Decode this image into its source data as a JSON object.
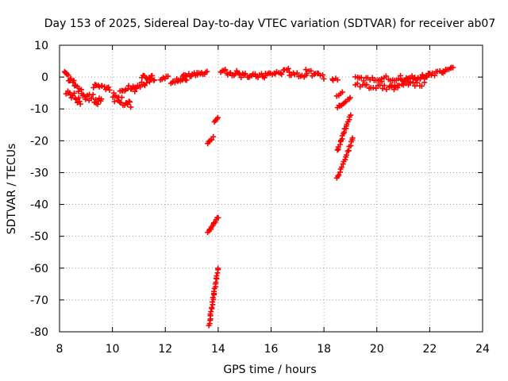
{
  "chart_data": {
    "type": "scatter",
    "title": "Day 153 of 2025, Sidereal Day-to-day VTEC variation (SDTVAR) for receiver ab07",
    "xlabel": "GPS time / hours",
    "ylabel": "SDTVAR / TECUs",
    "xlim": [
      8,
      24
    ],
    "ylim": [
      -80,
      10
    ],
    "xticks": [
      "8",
      "10",
      "12",
      "14",
      "16",
      "18",
      "20",
      "22",
      "24"
    ],
    "yticks": [
      "10",
      "0",
      "-10",
      "-20",
      "-30",
      "-40",
      "-50",
      "-60",
      "-70",
      "-80"
    ],
    "grid": true,
    "marker": "plus",
    "color": "#ff0000",
    "segments": [
      {
        "x0": 8.2,
        "x1": 8.4,
        "y0": 1.5,
        "y1": -1.0,
        "spread": 1.8,
        "n": 8
      },
      {
        "x0": 8.25,
        "x1": 8.8,
        "y0": -4.5,
        "y1": -7.5,
        "spread": 2.5,
        "n": 14
      },
      {
        "x0": 8.4,
        "x1": 8.9,
        "y0": -1.0,
        "y1": -5.0,
        "spread": 2.0,
        "n": 12
      },
      {
        "x0": 8.9,
        "x1": 9.6,
        "y0": -5.5,
        "y1": -8.0,
        "spread": 3.0,
        "n": 18
      },
      {
        "x0": 9.3,
        "x1": 9.9,
        "y0": -3.0,
        "y1": -3.5,
        "spread": 1.5,
        "n": 12
      },
      {
        "x0": 10.0,
        "x1": 10.7,
        "y0": -6.0,
        "y1": -9.0,
        "spread": 3.0,
        "n": 18
      },
      {
        "x0": 10.3,
        "x1": 10.9,
        "y0": -4.0,
        "y1": -3.0,
        "spread": 2.0,
        "n": 12
      },
      {
        "x0": 10.8,
        "x1": 11.6,
        "y0": -4.0,
        "y1": 0.0,
        "spread": 2.0,
        "n": 16
      },
      {
        "x0": 11.1,
        "x1": 11.5,
        "y0": 0.0,
        "y1": 0.0,
        "spread": 1.2,
        "n": 8
      },
      {
        "x0": 11.8,
        "x1": 12.1,
        "y0": -0.5,
        "y1": 0.0,
        "spread": 1.0,
        "n": 6
      },
      {
        "x0": 12.2,
        "x1": 12.8,
        "y0": -1.5,
        "y1": -0.5,
        "spread": 1.2,
        "n": 12
      },
      {
        "x0": 12.6,
        "x1": 13.2,
        "y0": 0.0,
        "y1": 1.0,
        "spread": 1.5,
        "n": 12
      },
      {
        "x0": 13.2,
        "x1": 13.6,
        "y0": 1.0,
        "y1": 1.5,
        "spread": 1.0,
        "n": 8
      },
      {
        "x0": 13.6,
        "x1": 13.8,
        "y0": -21.0,
        "y1": -19.0,
        "spread": 0.6,
        "n": 6
      },
      {
        "x0": 13.85,
        "x1": 14.0,
        "y0": -14.0,
        "y1": -12.5,
        "spread": 0.5,
        "n": 4
      },
      {
        "x0": 13.6,
        "x1": 14.0,
        "y0": -49.0,
        "y1": -44.0,
        "spread": 0.6,
        "n": 12
      },
      {
        "x0": 13.65,
        "x1": 14.0,
        "y0": -78.0,
        "y1": -60.0,
        "spread": 0.6,
        "n": 26
      },
      {
        "x0": 14.1,
        "x1": 14.8,
        "y0": 2.0,
        "y1": 1.0,
        "spread": 2.0,
        "n": 14
      },
      {
        "x0": 14.8,
        "x1": 15.8,
        "y0": 0.5,
        "y1": 0.5,
        "spread": 1.5,
        "n": 18
      },
      {
        "x0": 15.8,
        "x1": 16.7,
        "y0": 1.0,
        "y1": 2.0,
        "spread": 1.6,
        "n": 16
      },
      {
        "x0": 16.7,
        "x1": 17.3,
        "y0": 1.0,
        "y1": 0.5,
        "spread": 1.2,
        "n": 10
      },
      {
        "x0": 17.3,
        "x1": 18.0,
        "y0": 1.5,
        "y1": 0.0,
        "spread": 1.8,
        "n": 12
      },
      {
        "x0": 18.3,
        "x1": 18.5,
        "y0": -1.0,
        "y1": -0.5,
        "spread": 0.8,
        "n": 4
      },
      {
        "x0": 18.5,
        "x1": 18.7,
        "y0": -6.0,
        "y1": -4.5,
        "spread": 0.6,
        "n": 4
      },
      {
        "x0": 18.5,
        "x1": 19.0,
        "y0": -9.5,
        "y1": -6.5,
        "spread": 0.8,
        "n": 10
      },
      {
        "x0": 18.5,
        "x1": 19.0,
        "y0": -23.0,
        "y1": -12.0,
        "spread": 0.7,
        "n": 18
      },
      {
        "x0": 18.5,
        "x1": 19.1,
        "y0": -32.0,
        "y1": -19.0,
        "spread": 0.7,
        "n": 18
      },
      {
        "x0": 19.2,
        "x1": 20.2,
        "y0": -0.5,
        "y1": -1.0,
        "spread": 1.2,
        "n": 14
      },
      {
        "x0": 19.2,
        "x1": 20.8,
        "y0": -2.5,
        "y1": -3.5,
        "spread": 1.5,
        "n": 20
      },
      {
        "x0": 20.2,
        "x1": 21.8,
        "y0": -0.5,
        "y1": 0.0,
        "spread": 1.5,
        "n": 22
      },
      {
        "x0": 20.5,
        "x1": 21.8,
        "y0": -3.0,
        "y1": -2.0,
        "spread": 1.5,
        "n": 16
      },
      {
        "x0": 21.0,
        "x1": 22.0,
        "y0": -1.5,
        "y1": 0.5,
        "spread": 1.2,
        "n": 12
      },
      {
        "x0": 21.8,
        "x1": 22.5,
        "y0": 0.5,
        "y1": 1.5,
        "spread": 1.2,
        "n": 12
      },
      {
        "x0": 22.5,
        "x1": 22.9,
        "y0": 2.0,
        "y1": 2.5,
        "spread": 1.6,
        "n": 8
      }
    ]
  }
}
